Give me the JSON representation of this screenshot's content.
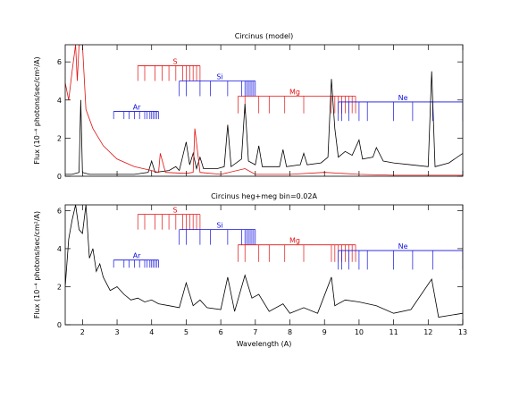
{
  "chart_data": [
    {
      "type": "line",
      "title": "Circinus (model)",
      "y_label": "Flux (10⁻⁴ photons/sec/cm²/A)",
      "xlim": [
        1.5,
        13
      ],
      "ylim": [
        0,
        6.9
      ],
      "xticks": [
        2,
        3,
        4,
        5,
        6,
        7,
        8,
        9,
        10,
        11,
        12,
        13
      ],
      "yticks": [
        0,
        2,
        4,
        6
      ],
      "xticklabels": false,
      "series": [
        {
          "color": "#000000",
          "x": [
            1.5,
            1.7,
            1.9,
            1.95,
            2.0,
            2.2,
            2.5,
            3.0,
            3.5,
            3.9,
            4.0,
            4.1,
            4.5,
            4.7,
            4.8,
            5.0,
            5.1,
            5.2,
            5.3,
            5.4,
            5.5,
            5.9,
            6.1,
            6.2,
            6.3,
            6.6,
            6.7,
            6.8,
            7.0,
            7.1,
            7.2,
            7.7,
            7.8,
            7.9,
            8.3,
            8.4,
            8.5,
            8.9,
            9.1,
            9.2,
            9.3,
            9.4,
            9.6,
            9.8,
            10.0,
            10.1,
            10.4,
            10.5,
            10.7,
            11.0,
            11.5,
            12.0,
            12.1,
            12.2,
            12.6,
            13.0
          ],
          "values": [
            0.1,
            0.1,
            0.2,
            4.0,
            0.2,
            0.1,
            0.1,
            0.1,
            0.1,
            0.2,
            0.8,
            0.2,
            0.3,
            0.5,
            0.3,
            1.8,
            0.6,
            1.2,
            0.4,
            1.0,
            0.4,
            0.4,
            0.5,
            2.7,
            0.5,
            0.9,
            3.8,
            0.8,
            0.6,
            1.6,
            0.5,
            0.5,
            1.4,
            0.5,
            0.6,
            1.2,
            0.6,
            0.7,
            1.0,
            5.1,
            2.5,
            1.0,
            1.3,
            1.1,
            1.9,
            0.9,
            1.0,
            1.5,
            0.8,
            0.7,
            0.6,
            0.5,
            5.5,
            0.5,
            0.7,
            1.2
          ]
        },
        {
          "color": "#e01010",
          "x": [
            1.5,
            1.6,
            1.7,
            1.8,
            1.85,
            1.9,
            2.0,
            2.1,
            2.3,
            2.6,
            3.0,
            3.5,
            4.0,
            4.2,
            4.25,
            4.4,
            5.0,
            5.2,
            5.25,
            5.4,
            6.0,
            6.7,
            7.0,
            8.0,
            9.0,
            10.0,
            11.0,
            12.0,
            13.0
          ],
          "values": [
            4.9,
            4.0,
            5.5,
            6.9,
            5.0,
            6.9,
            6.9,
            3.5,
            2.5,
            1.6,
            0.9,
            0.5,
            0.3,
            0.2,
            1.2,
            0.2,
            0.15,
            0.2,
            2.5,
            0.2,
            0.1,
            0.4,
            0.1,
            0.1,
            0.2,
            0.1,
            0.05,
            0.05,
            0.05
          ]
        }
      ],
      "line_groups": [
        {
          "name": "S",
          "color": "#e01010",
          "top": 5.8,
          "bottom": 5.0,
          "label_x": 4.68,
          "lines": [
            3.6,
            3.8,
            4.1,
            4.3,
            4.5,
            4.7,
            4.9,
            5.0,
            5.1,
            5.2,
            5.3,
            5.4
          ]
        },
        {
          "name": "Si",
          "color": "#1010e0",
          "top": 5.0,
          "bottom": 4.2,
          "label_x": 5.97,
          "lines": [
            4.8,
            5.0,
            5.4,
            5.7,
            6.2,
            6.6,
            6.7,
            6.75,
            6.8,
            6.85,
            6.9,
            6.95,
            7.0
          ]
        },
        {
          "name": "Mg",
          "color": "#e01010",
          "top": 4.2,
          "bottom": 3.3,
          "label_x": 8.14,
          "lines": [
            6.5,
            6.7,
            7.1,
            7.4,
            7.85,
            8.4,
            9.2,
            9.3,
            9.4,
            9.5,
            9.6,
            9.7,
            9.8,
            9.9
          ]
        },
        {
          "name": "Ne",
          "color": "#1010e0",
          "top": 3.9,
          "bottom": 2.9,
          "label_x": 11.27,
          "lines": [
            9.4,
            9.5,
            9.7,
            10.0,
            10.24,
            11.0,
            11.55,
            12.13,
            13.0
          ]
        },
        {
          "name": "Ar",
          "color": "#1010e0",
          "top": 3.4,
          "bottom": 3.0,
          "label_x": 3.57,
          "lines": [
            2.9,
            3.2,
            3.35,
            3.5,
            3.65,
            3.8,
            3.87,
            3.95,
            4.0,
            4.05,
            4.1,
            4.15,
            4.2
          ]
        }
      ]
    },
    {
      "type": "line",
      "title": "Circinus heg+meg bin=0.02A",
      "x_label": "Wavelength (A)",
      "y_label": "Flux (10⁻⁴ photons/sec/cm²/A)",
      "xlim": [
        1.5,
        13
      ],
      "ylim": [
        0,
        6.3
      ],
      "xticks": [
        2,
        3,
        4,
        5,
        6,
        7,
        8,
        9,
        10,
        11,
        12,
        13
      ],
      "yticks": [
        0,
        2,
        4,
        6
      ],
      "xticklabels": true,
      "series": [
        {
          "color": "#000000",
          "x": [
            1.5,
            1.6,
            1.7,
            1.8,
            1.9,
            2.0,
            2.1,
            2.2,
            2.3,
            2.4,
            2.5,
            2.6,
            2.8,
            3.0,
            3.2,
            3.4,
            3.6,
            3.8,
            4.0,
            4.2,
            4.5,
            4.8,
            5.0,
            5.2,
            5.4,
            5.6,
            6.0,
            6.2,
            6.4,
            6.7,
            6.9,
            7.1,
            7.4,
            7.8,
            8.0,
            8.4,
            8.8,
            9.2,
            9.3,
            9.6,
            10.0,
            10.5,
            11.0,
            11.5,
            12.1,
            12.3,
            13.0
          ],
          "values": [
            2.0,
            4.5,
            5.5,
            6.3,
            5.0,
            4.8,
            6.3,
            3.5,
            4.0,
            2.8,
            3.2,
            2.5,
            1.8,
            2.0,
            1.6,
            1.3,
            1.4,
            1.2,
            1.3,
            1.1,
            1.0,
            0.9,
            2.2,
            1.0,
            1.3,
            0.9,
            0.8,
            2.5,
            0.7,
            2.6,
            1.4,
            1.6,
            0.7,
            1.1,
            0.6,
            0.9,
            0.6,
            2.5,
            1.0,
            1.3,
            1.2,
            1.0,
            0.6,
            0.8,
            2.4,
            0.4,
            0.6
          ]
        }
      ],
      "line_groups": [
        {
          "name": "S",
          "color": "#e01010",
          "top": 5.8,
          "bottom": 5.0,
          "label_x": 4.68,
          "lines": [
            3.6,
            3.8,
            4.1,
            4.3,
            4.5,
            4.7,
            4.9,
            5.0,
            5.1,
            5.2,
            5.3,
            5.4
          ]
        },
        {
          "name": "Si",
          "color": "#1010e0",
          "top": 5.0,
          "bottom": 4.2,
          "label_x": 5.97,
          "lines": [
            4.8,
            5.0,
            5.4,
            5.7,
            6.2,
            6.6,
            6.7,
            6.75,
            6.8,
            6.85,
            6.9,
            6.95,
            7.0
          ]
        },
        {
          "name": "Mg",
          "color": "#e01010",
          "top": 4.2,
          "bottom": 3.3,
          "label_x": 8.14,
          "lines": [
            6.5,
            6.7,
            7.1,
            7.4,
            7.85,
            8.4,
            9.2,
            9.3,
            9.4,
            9.5,
            9.6,
            9.7,
            9.8,
            9.9
          ]
        },
        {
          "name": "Ne",
          "color": "#1010e0",
          "top": 3.9,
          "bottom": 2.9,
          "label_x": 11.27,
          "lines": [
            9.4,
            9.5,
            9.7,
            10.0,
            10.24,
            11.0,
            11.55,
            12.13,
            13.0
          ]
        },
        {
          "name": "Ar",
          "color": "#1010e0",
          "top": 3.4,
          "bottom": 3.0,
          "label_x": 3.57,
          "lines": [
            2.9,
            3.2,
            3.35,
            3.5,
            3.65,
            3.8,
            3.87,
            3.95,
            4.0,
            4.05,
            4.1,
            4.15,
            4.2
          ]
        }
      ]
    }
  ]
}
